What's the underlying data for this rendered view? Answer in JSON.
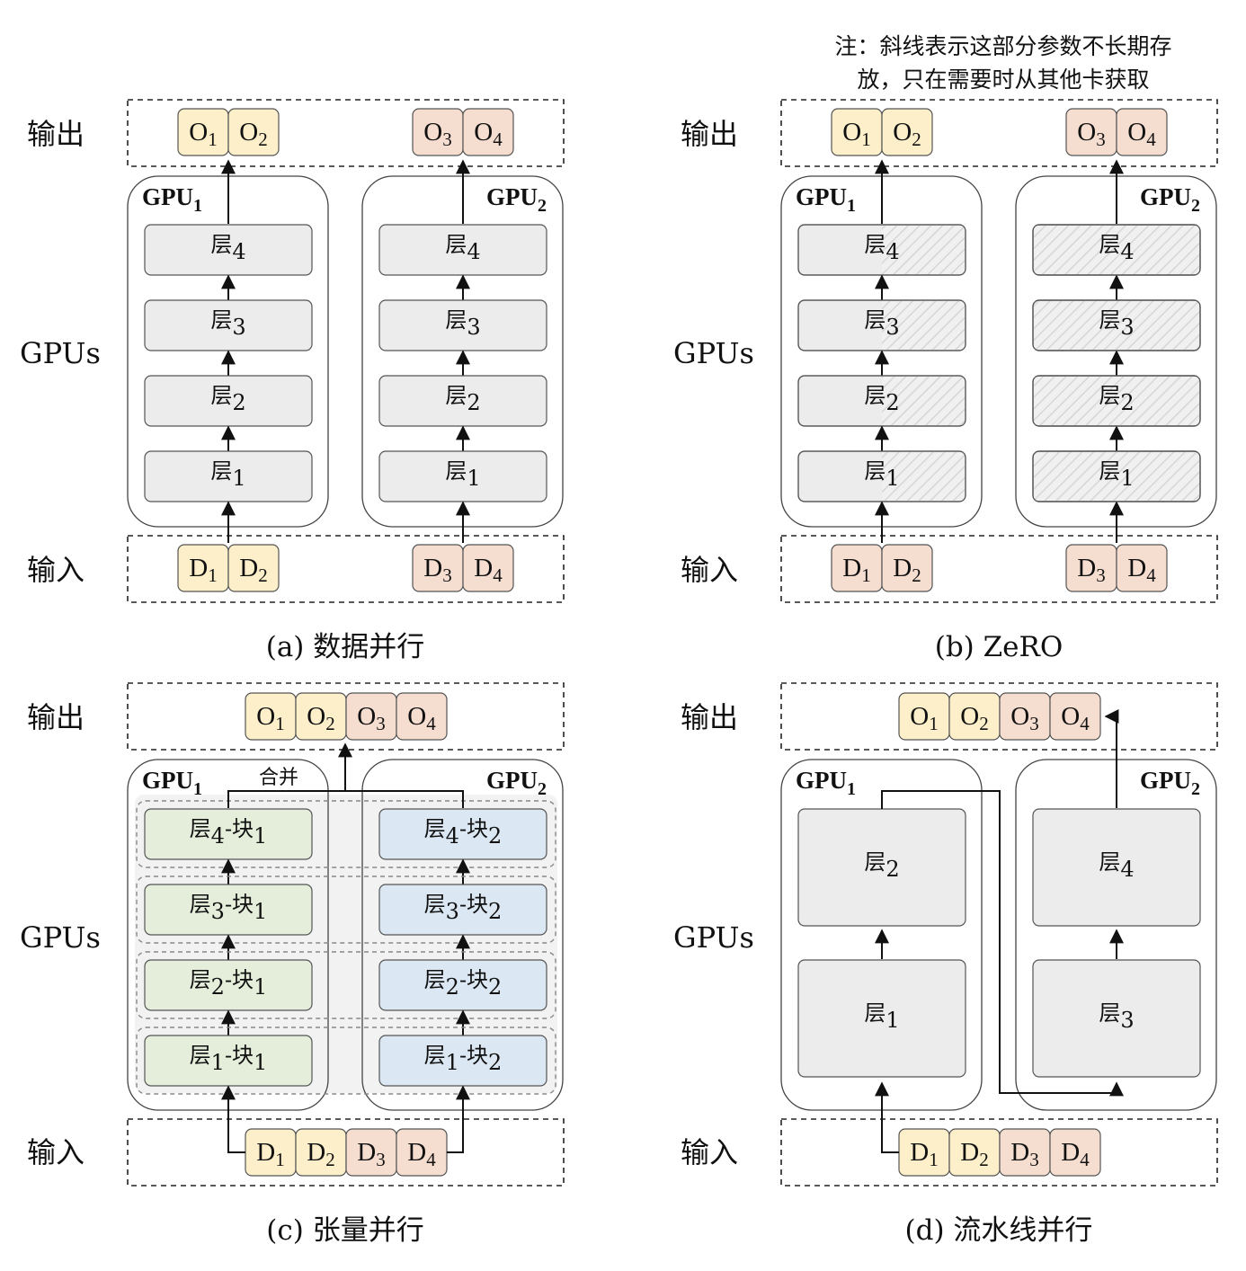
{
  "colors": {
    "token_yellow": "#fcefc9",
    "token_peach": "#f5ddd0",
    "layer_gray": "#ececec",
    "shard_green": "#e4eedb",
    "shard_blue": "#dce7f4",
    "stroke": "#333333"
  },
  "labels": {
    "output": "输出",
    "input": "输入",
    "gpus": "GPUs",
    "gpu": "GPU",
    "layer": "层",
    "block": "块",
    "merge": "合并"
  },
  "note": {
    "line1": "注：斜线表示这部分参数不长期存",
    "line2": "放，只在需要时从其他卡获取"
  },
  "panels": {
    "a": {
      "caption": "(a)  数据并行"
    },
    "b": {
      "caption": "(b) ZeRO"
    },
    "c": {
      "caption": "(c) 张量并行"
    },
    "d": {
      "caption": "(d) 流水线并行"
    }
  },
  "tokens": {
    "outputs": [
      "O",
      "O",
      "O",
      "O"
    ],
    "inputs": [
      "D",
      "D",
      "D",
      "D"
    ],
    "indices": [
      "1",
      "2",
      "3",
      "4"
    ]
  },
  "pipeline_layers": {
    "gpu1": [
      "2",
      "1"
    ],
    "gpu2": [
      "4",
      "3"
    ]
  }
}
